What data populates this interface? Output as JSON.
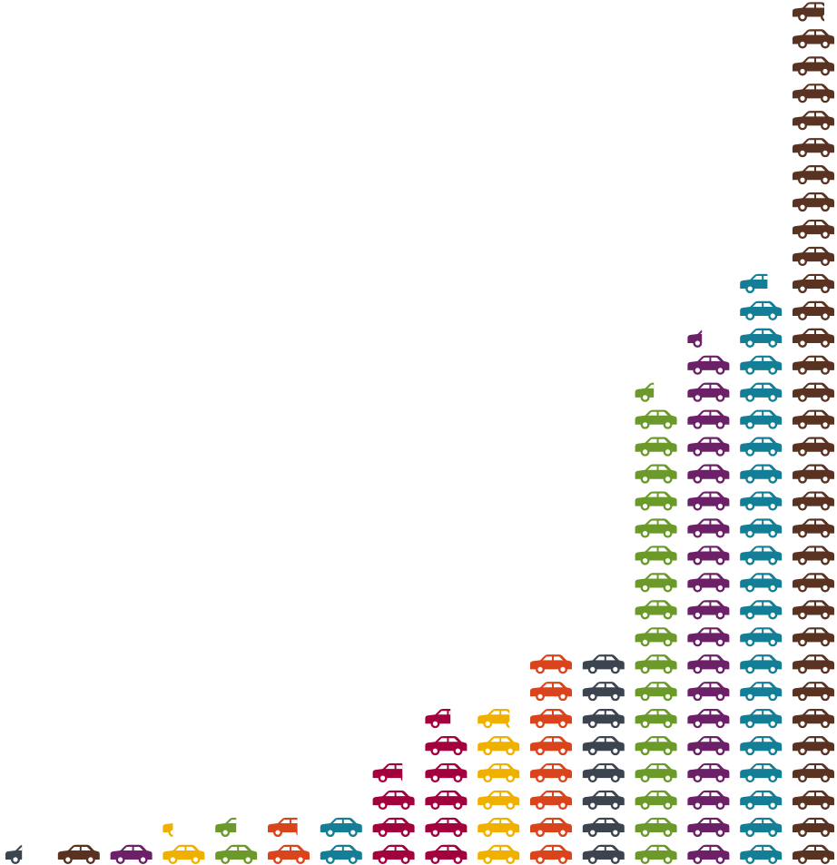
{
  "chart_data": {
    "type": "pictogram",
    "categories": [
      null,
      null,
      null,
      null,
      null,
      null,
      null,
      null,
      null,
      null,
      null,
      null,
      null,
      null,
      null,
      null
    ],
    "values": [
      0.4,
      1,
      1,
      1.25,
      1.5,
      1.7,
      2,
      3.7,
      5.6,
      5.75,
      8,
      8,
      17.45,
      19.35,
      21.65,
      31.75
    ],
    "colors": [
      "#3c4450",
      "#5a3221",
      "#6b2068",
      "#f0b000",
      "#6b9a2a",
      "#d9441c",
      "#137e96",
      "#a3003e",
      "#a3003e",
      "#f0b000",
      "#d9441c",
      "#3c4450",
      "#6b9a2a",
      "#6b2068",
      "#137e96",
      "#5a3221"
    ]
  }
}
